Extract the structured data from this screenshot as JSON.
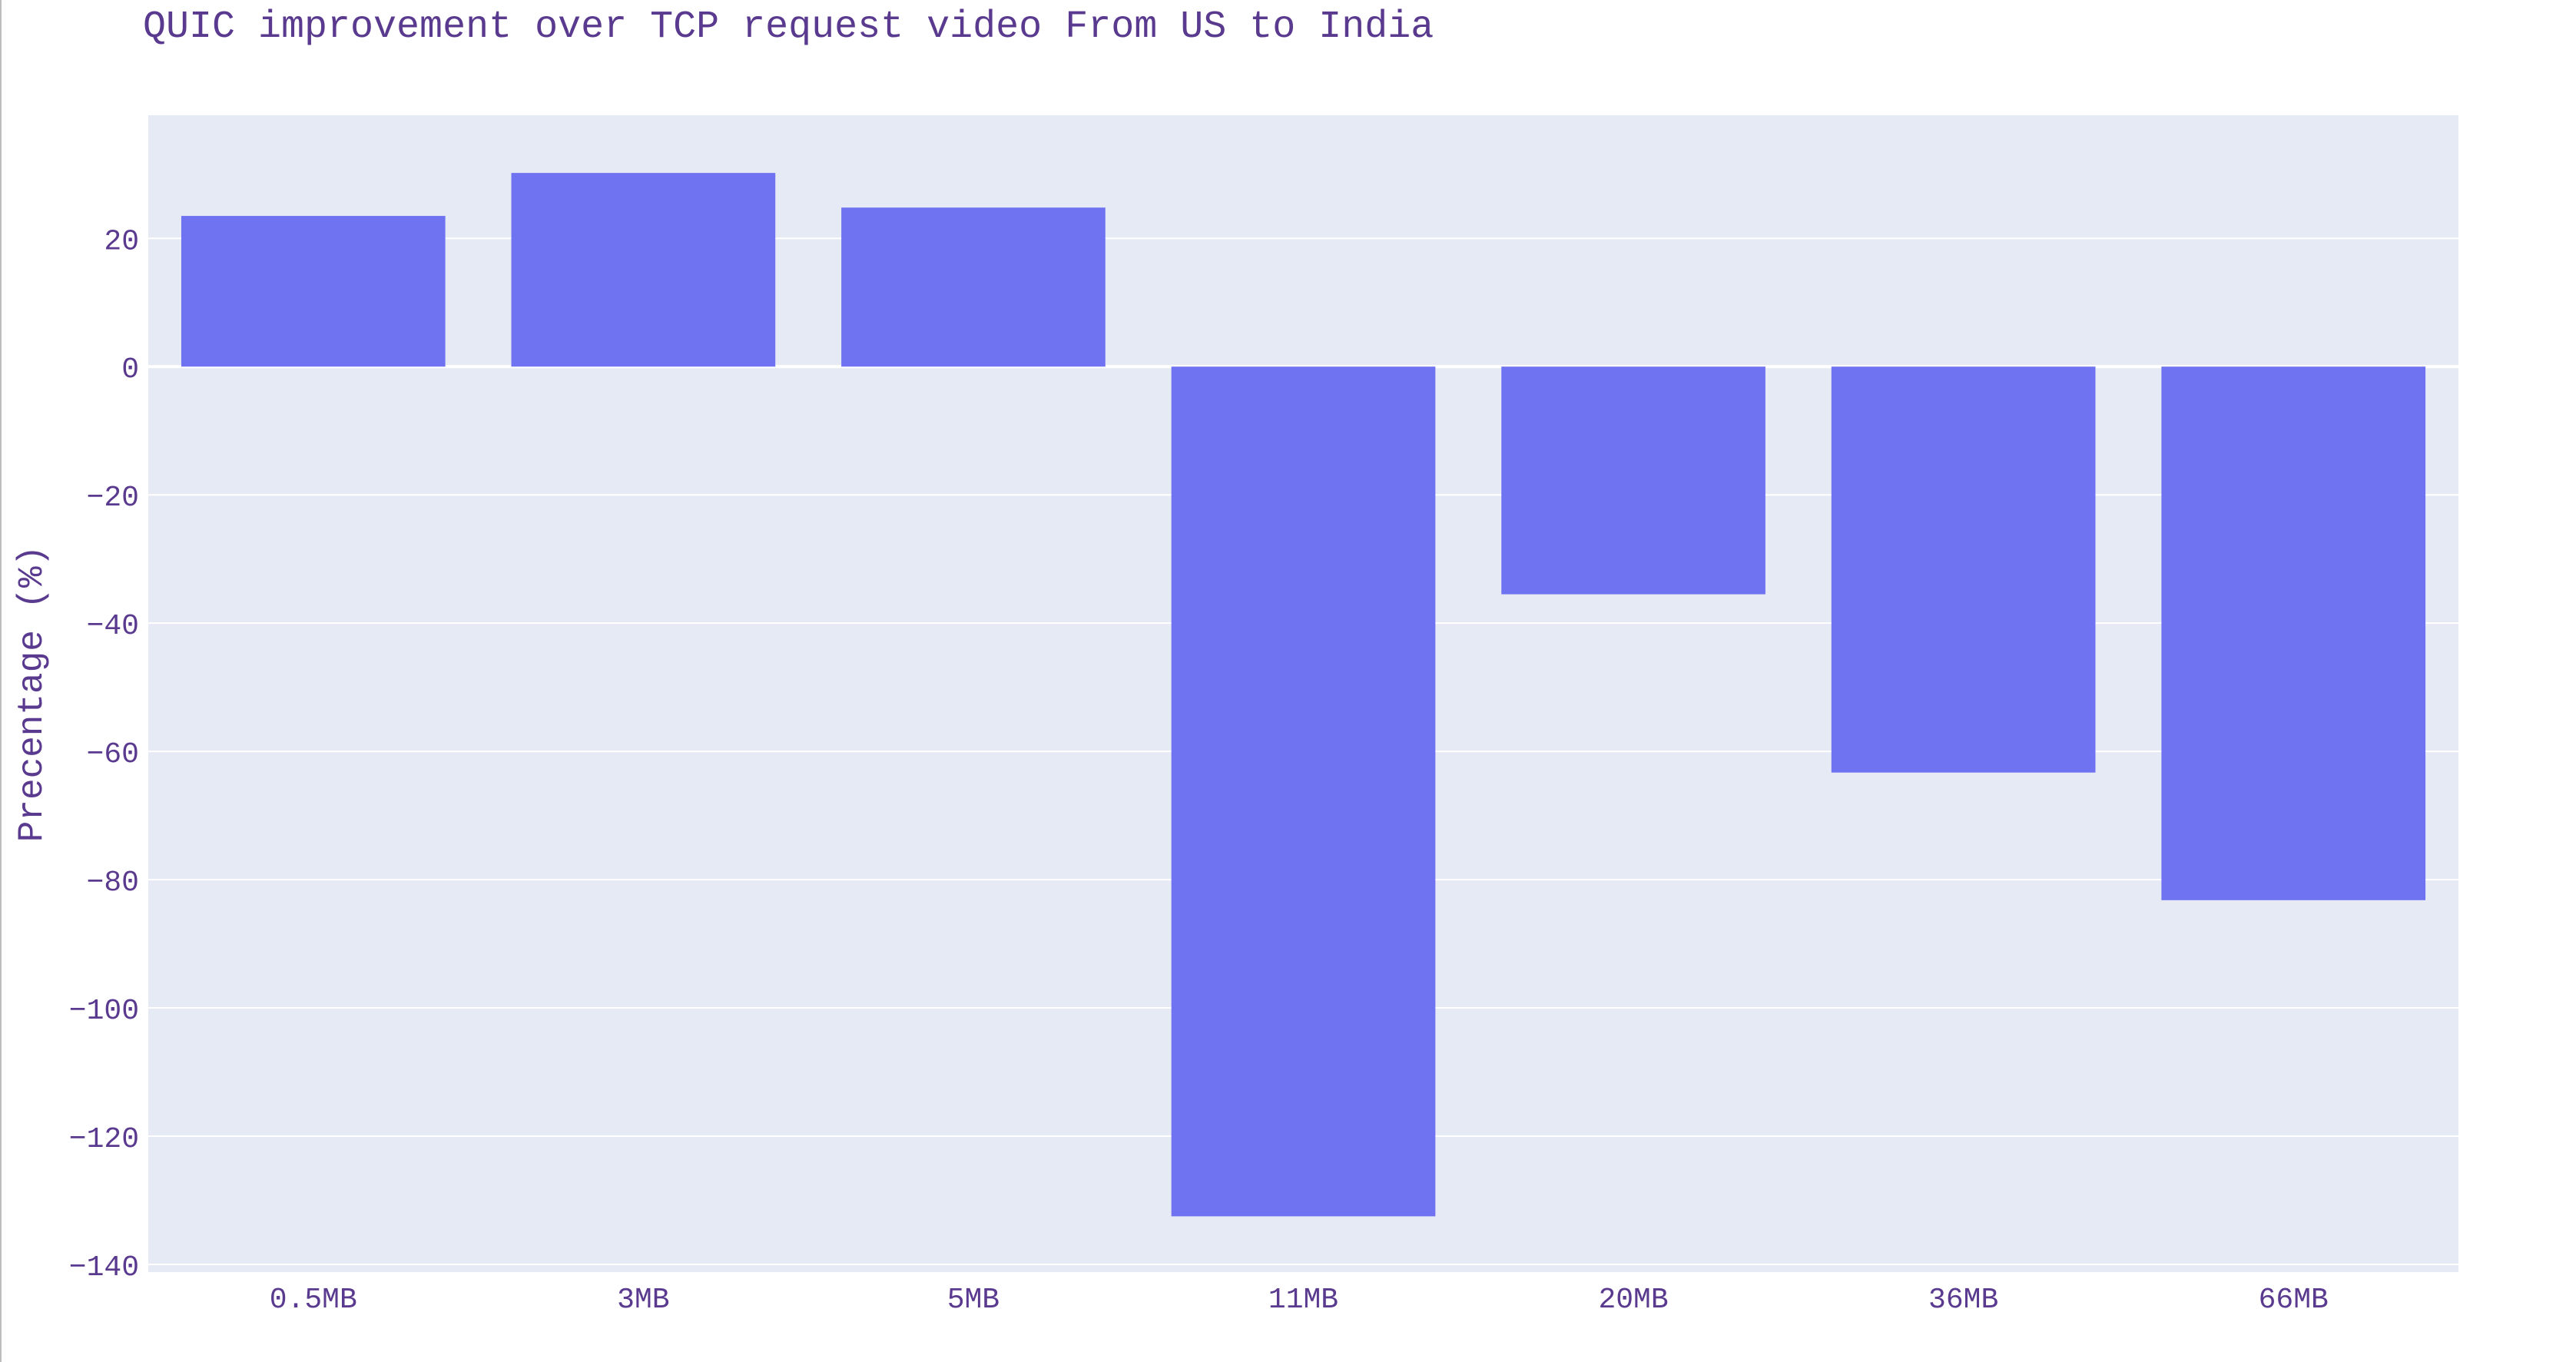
{
  "chart_data": {
    "type": "bar",
    "title": "QUIC improvement over TCP request video From US to India",
    "xlabel": "",
    "ylabel": "Precentage (%)",
    "categories": [
      "0.5MB",
      "3MB",
      "5MB",
      "11MB",
      "20MB",
      "36MB",
      "66MB"
    ],
    "values": [
      23.5,
      30.2,
      24.8,
      -132.5,
      -35.5,
      -63.3,
      -83.2
    ],
    "ylim": [
      -141.2,
      39.2
    ],
    "yticks": [
      20,
      0,
      -20,
      -40,
      -60,
      -80,
      -100,
      -120,
      -140
    ],
    "ytick_labels": [
      "20",
      "0",
      "−20",
      "−40",
      "−60",
      "−80",
      "−100",
      "−120",
      "−140"
    ],
    "grid": true,
    "legend": "none",
    "colors": {
      "bar": "#6f72f1",
      "plot_bg": "#e6eaf4",
      "grid": "#ffffff",
      "text": "#5a3a8f"
    }
  }
}
